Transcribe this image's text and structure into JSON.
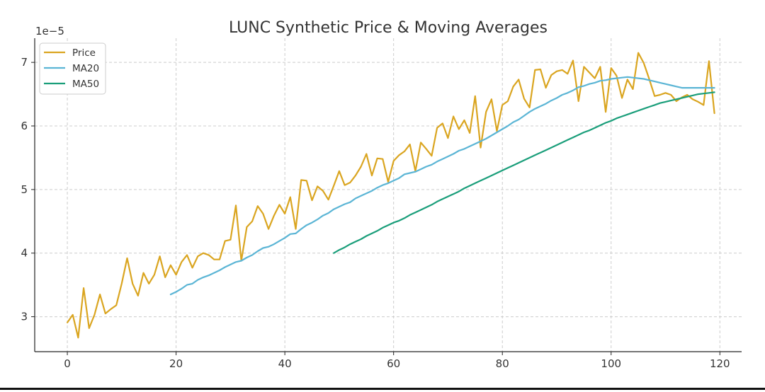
{
  "chart_data": {
    "type": "line",
    "title": "LUNC Synthetic Price & Moving Averages",
    "offset_text": "1e−5",
    "xlabel": "",
    "ylabel": "",
    "xlim": [
      -6,
      124
    ],
    "ylim": [
      2.45,
      7.38
    ],
    "xticks": [
      0,
      20,
      40,
      60,
      80,
      100,
      120
    ],
    "yticks": [
      3,
      4,
      5,
      6,
      7
    ],
    "grid": true,
    "legend_position": "top-left",
    "series": [
      {
        "name": "Price",
        "color": "#DAA520",
        "x_start": 0,
        "values": [
          2.91,
          3.03,
          2.67,
          3.45,
          2.82,
          3.03,
          3.35,
          3.05,
          3.12,
          3.18,
          3.52,
          3.92,
          3.52,
          3.33,
          3.69,
          3.52,
          3.66,
          3.95,
          3.62,
          3.81,
          3.66,
          3.86,
          3.97,
          3.77,
          3.95,
          4.0,
          3.97,
          3.9,
          3.9,
          4.19,
          4.21,
          4.75,
          3.88,
          4.41,
          4.5,
          4.74,
          4.62,
          4.38,
          4.59,
          4.76,
          4.62,
          4.88,
          4.38,
          5.15,
          5.14,
          4.83,
          5.05,
          4.98,
          4.84,
          5.06,
          5.29,
          5.07,
          5.11,
          5.22,
          5.36,
          5.56,
          5.22,
          5.49,
          5.48,
          5.12,
          5.45,
          5.54,
          5.6,
          5.71,
          5.29,
          5.74,
          5.64,
          5.53,
          5.97,
          6.04,
          5.81,
          6.15,
          5.95,
          6.09,
          5.89,
          6.47,
          5.66,
          6.22,
          6.42,
          5.92,
          6.33,
          6.39,
          6.62,
          6.73,
          6.43,
          6.29,
          6.88,
          6.89,
          6.6,
          6.8,
          6.86,
          6.88,
          6.82,
          7.03,
          6.39,
          6.93,
          6.84,
          6.75,
          6.93,
          6.22,
          6.91,
          6.79,
          6.44,
          6.73,
          6.58,
          7.15,
          6.99,
          6.74,
          6.47,
          6.49,
          6.52,
          6.49,
          6.39,
          6.45,
          6.49,
          6.42,
          6.38,
          6.33,
          7.02,
          6.2
        ]
      },
      {
        "name": "MA20",
        "color": "#5BB5D5",
        "x_start": 19,
        "values": [
          3.35,
          3.39,
          3.44,
          3.5,
          3.52,
          3.58,
          3.62,
          3.65,
          3.69,
          3.73,
          3.78,
          3.82,
          3.86,
          3.88,
          3.93,
          3.97,
          4.03,
          4.08,
          4.1,
          4.14,
          4.19,
          4.24,
          4.3,
          4.31,
          4.38,
          4.44,
          4.48,
          4.53,
          4.59,
          4.63,
          4.69,
          4.73,
          4.77,
          4.8,
          4.86,
          4.9,
          4.94,
          4.98,
          5.03,
          5.07,
          5.1,
          5.14,
          5.18,
          5.24,
          5.26,
          5.28,
          5.32,
          5.36,
          5.39,
          5.44,
          5.48,
          5.52,
          5.56,
          5.61,
          5.64,
          5.68,
          5.72,
          5.76,
          5.8,
          5.85,
          5.9,
          5.95,
          6.0,
          6.06,
          6.1,
          6.16,
          6.22,
          6.27,
          6.31,
          6.35,
          6.4,
          6.44,
          6.49,
          6.52,
          6.56,
          6.61,
          6.63,
          6.66,
          6.68,
          6.71,
          6.72,
          6.74,
          6.75,
          6.76,
          6.77,
          6.76,
          6.75,
          6.74,
          6.72,
          6.7,
          6.68,
          6.66,
          6.64,
          6.62,
          6.6,
          6.6,
          6.6,
          6.6,
          6.6,
          6.6,
          6.6
        ]
      },
      {
        "name": "MA50",
        "color": "#1A9E7A",
        "x_start": 49,
        "values": [
          4.0,
          4.05,
          4.09,
          4.14,
          4.18,
          4.22,
          4.27,
          4.31,
          4.35,
          4.4,
          4.44,
          4.48,
          4.51,
          4.55,
          4.6,
          4.64,
          4.68,
          4.72,
          4.76,
          4.81,
          4.85,
          4.89,
          4.93,
          4.97,
          5.02,
          5.06,
          5.1,
          5.14,
          5.18,
          5.22,
          5.26,
          5.3,
          5.34,
          5.38,
          5.42,
          5.46,
          5.5,
          5.54,
          5.58,
          5.62,
          5.66,
          5.7,
          5.74,
          5.78,
          5.82,
          5.86,
          5.9,
          5.93,
          5.97,
          6.01,
          6.05,
          6.08,
          6.12,
          6.15,
          6.18,
          6.21,
          6.24,
          6.27,
          6.3,
          6.33,
          6.36,
          6.38,
          6.4,
          6.42,
          6.44,
          6.46,
          6.48,
          6.5,
          6.51,
          6.52,
          6.53
        ]
      }
    ]
  }
}
